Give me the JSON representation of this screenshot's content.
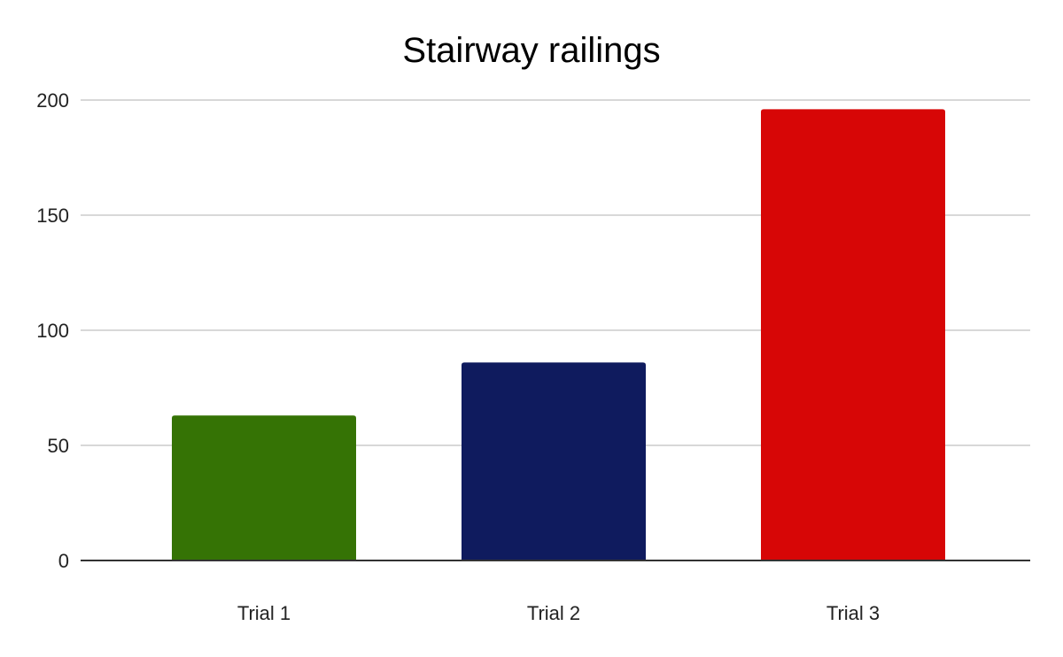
{
  "chart_data": {
    "type": "bar",
    "title": "Stairway railings",
    "xlabel": "",
    "ylabel": "",
    "categories": [
      "Trial 1",
      "Trial 2",
      "Trial 3"
    ],
    "values": [
      63,
      86,
      196
    ],
    "bar_colors": [
      "#357305",
      "#0f1b5e",
      "#d70606"
    ],
    "ylim": [
      0,
      200
    ],
    "yticks": [
      0,
      50,
      100,
      150,
      200
    ],
    "grid": true,
    "legend": "none"
  }
}
